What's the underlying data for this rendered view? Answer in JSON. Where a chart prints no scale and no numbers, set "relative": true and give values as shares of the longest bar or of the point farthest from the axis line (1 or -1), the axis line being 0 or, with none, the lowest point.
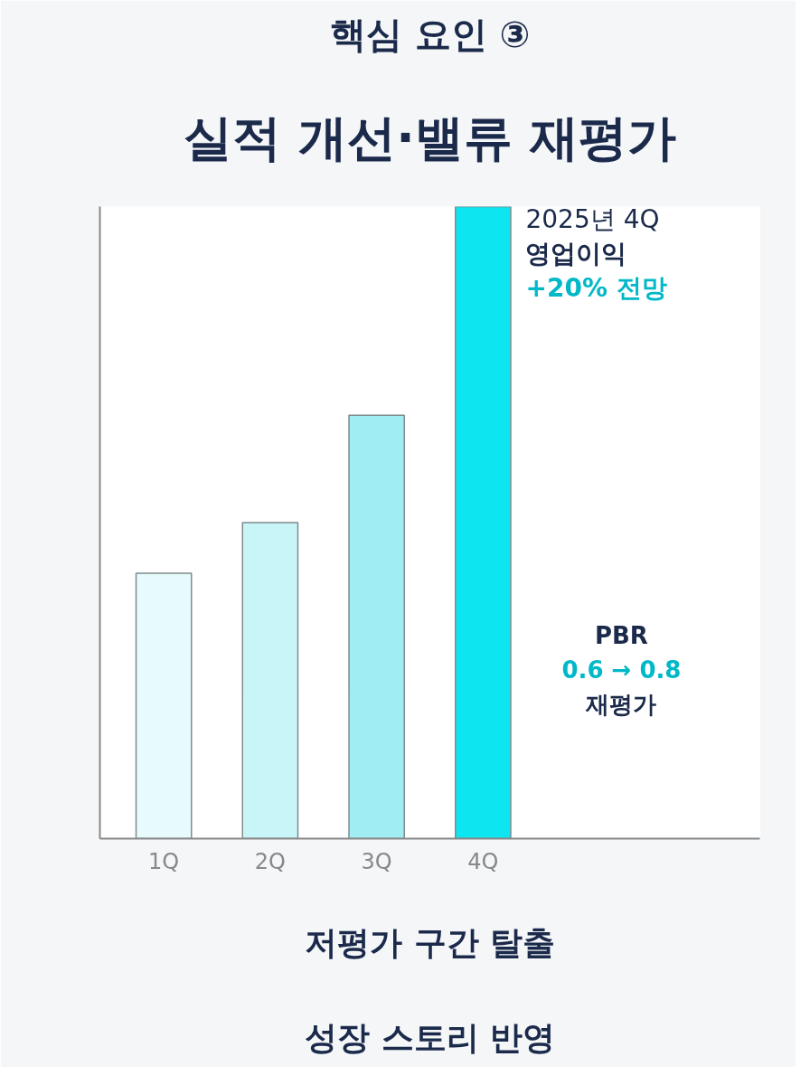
{
  "chart_data": {
    "type": "bar",
    "title": "핵심 요인 ③",
    "subtitle": "실적 개선·밸류 재평가",
    "categories": [
      "1Q",
      "2Q",
      "3Q",
      "4Q"
    ],
    "values": [
      0.42,
      0.5,
      0.67,
      1
    ],
    "colors": [
      "#e8fbfc",
      "#c8f5f8",
      "#a0eef4",
      "#0de5f0"
    ],
    "relative": true,
    "annotations": [
      {
        "text": "2025년 4Q\n영업이익\n+20% 전망",
        "x": "4Q",
        "y": 1
      },
      "PBR\n0.6 → 0.8\n재평가",
      "저평가 구간 탈출",
      "성장 스토리 반영"
    ]
  }
}
